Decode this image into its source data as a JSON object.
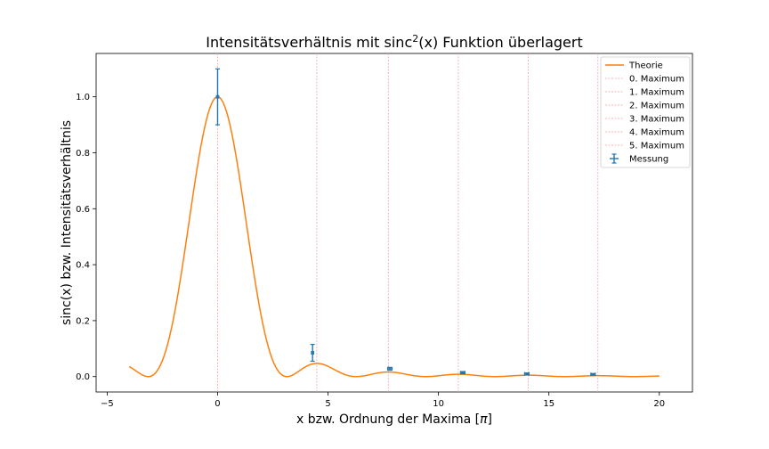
{
  "chart_data": {
    "type": "line",
    "title_main": "Intensitätsverhältnis mit sinc",
    "title_sup": "2",
    "title_tail": "(x) Funktion überlagert",
    "xlabel_main": "x bzw. Ordnung der Maxima [",
    "xlabel_symbol": "π",
    "xlabel_tail": "]",
    "ylabel": "sinc(x) bzw. Intensitätsverhältnis",
    "xlim": [
      -5.5,
      21.5
    ],
    "ylim": [
      -0.055,
      1.155
    ],
    "xticks": [
      -5,
      0,
      5,
      10,
      15,
      20
    ],
    "xtick_labels": [
      "−5",
      "0",
      "5",
      "10",
      "15",
      "20"
    ],
    "yticks": [
      0.0,
      0.2,
      0.4,
      0.6,
      0.8,
      1.0
    ],
    "ytick_labels": [
      "0.0",
      "0.2",
      "0.4",
      "0.6",
      "0.8",
      "1.0"
    ],
    "grid": false,
    "legend_position": "top-right",
    "colors": {
      "theory": "#ff7f0e",
      "measurement": "#1f77b4",
      "maxima_lines": "#f4a3a3"
    },
    "theory": {
      "label": "Theorie",
      "function": "sinc^2",
      "x_range": [
        -4,
        20
      ]
    },
    "maxima": [
      {
        "label": "0. Maximum",
        "x": 0.0
      },
      {
        "label": "1. Maximum",
        "x": 4.49
      },
      {
        "label": "2. Maximum",
        "x": 7.73
      },
      {
        "label": "3. Maximum",
        "x": 10.9
      },
      {
        "label": "4. Maximum",
        "x": 14.07
      },
      {
        "label": "5. Maximum",
        "x": 17.22
      }
    ],
    "measurement": {
      "label": "Messung",
      "points": [
        {
          "x": 0.0,
          "y": 1.0,
          "yerr": 0.1,
          "xerr": 0.05
        },
        {
          "x": 4.3,
          "y": 0.085,
          "yerr": 0.03,
          "xerr": 0.05
        },
        {
          "x": 7.8,
          "y": 0.028,
          "yerr": 0.005,
          "xerr": 0.1
        },
        {
          "x": 11.1,
          "y": 0.014,
          "yerr": 0.004,
          "xerr": 0.1
        },
        {
          "x": 14.0,
          "y": 0.01,
          "yerr": 0.003,
          "xerr": 0.1
        },
        {
          "x": 17.0,
          "y": 0.008,
          "yerr": 0.003,
          "xerr": 0.1
        }
      ]
    }
  }
}
